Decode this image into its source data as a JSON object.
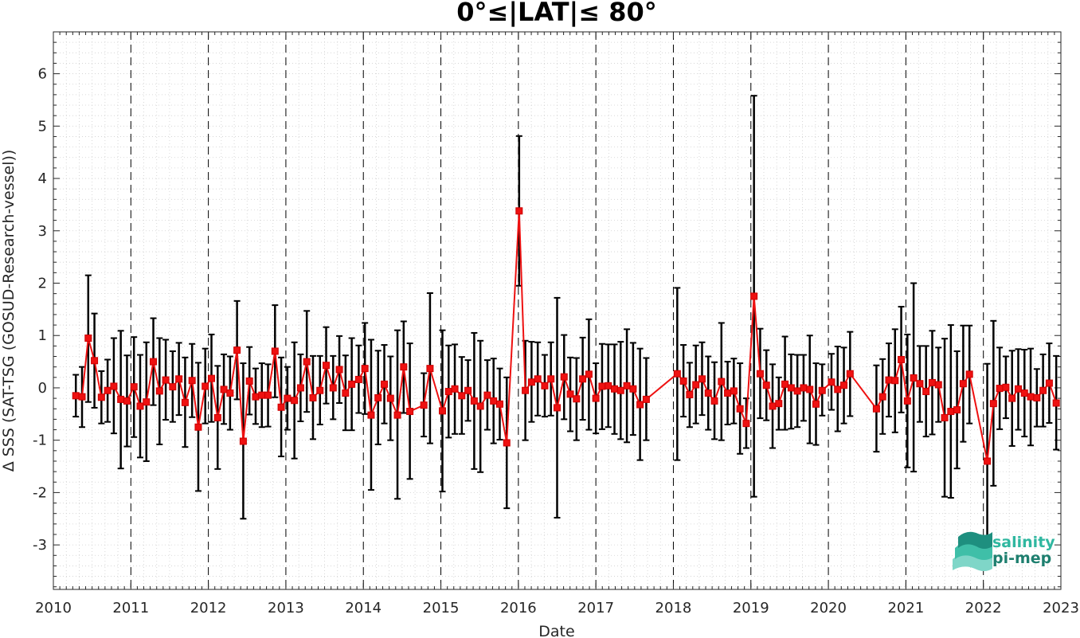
{
  "chart_data": {
    "type": "line",
    "title": "0°≤|LAT|≤ 80°",
    "xlabel": "Date",
    "ylabel": "Δ SSS (SAT-TSG (GOSUD-Research-vessel))",
    "xlim": [
      2010,
      2023
    ],
    "ylim": [
      -3.85,
      6.8
    ],
    "x_ticks": [
      "2010",
      "2011",
      "2012",
      "2013",
      "2014",
      "2015",
      "2016",
      "2017",
      "2018",
      "2019",
      "2020",
      "2021",
      "2022",
      "2023"
    ],
    "y_ticks": [
      "-3",
      "-2",
      "-1",
      "0",
      "1",
      "2",
      "3",
      "4",
      "5",
      "6"
    ],
    "grid": "minor dotted",
    "year_lines": "dashed",
    "series": [
      {
        "color": "#ee1111",
        "marker": "square",
        "error_bar_color": "#000000",
        "points": [
          {
            "x": 2010.29,
            "y": -0.15,
            "lo": -0.55,
            "hi": 0.25
          },
          {
            "x": 2010.37,
            "y": -0.17,
            "lo": -0.75,
            "hi": 0.4
          },
          {
            "x": 2010.45,
            "y": 0.95,
            "lo": -0.27,
            "hi": 2.15
          },
          {
            "x": 2010.53,
            "y": 0.52,
            "lo": -0.38,
            "hi": 1.42
          },
          {
            "x": 2010.62,
            "y": -0.18,
            "lo": -0.68,
            "hi": 0.32
          },
          {
            "x": 2010.7,
            "y": -0.05,
            "lo": -0.65,
            "hi": 0.54
          },
          {
            "x": 2010.78,
            "y": 0.03,
            "lo": -0.87,
            "hi": 0.95
          },
          {
            "x": 2010.87,
            "y": -0.22,
            "lo": -1.54,
            "hi": 1.09
          },
          {
            "x": 2010.95,
            "y": -0.25,
            "lo": -1.12,
            "hi": 0.62
          },
          {
            "x": 2011.04,
            "y": 0.02,
            "lo": -0.94,
            "hi": 0.97
          },
          {
            "x": 2011.12,
            "y": -0.35,
            "lo": -1.33,
            "hi": 0.63
          },
          {
            "x": 2011.2,
            "y": -0.27,
            "lo": -1.4,
            "hi": 0.87
          },
          {
            "x": 2011.29,
            "y": 0.5,
            "lo": -0.33,
            "hi": 1.33
          },
          {
            "x": 2011.37,
            "y": -0.06,
            "lo": -1.08,
            "hi": 0.95
          },
          {
            "x": 2011.45,
            "y": 0.15,
            "lo": -0.61,
            "hi": 0.92
          },
          {
            "x": 2011.54,
            "y": 0.02,
            "lo": -0.65,
            "hi": 0.7
          },
          {
            "x": 2011.62,
            "y": 0.17,
            "lo": -0.52,
            "hi": 0.86
          },
          {
            "x": 2011.7,
            "y": -0.28,
            "lo": -1.13,
            "hi": 0.58
          },
          {
            "x": 2011.79,
            "y": 0.14,
            "lo": -0.56,
            "hi": 0.84
          },
          {
            "x": 2011.87,
            "y": -0.75,
            "lo": -1.97,
            "hi": 0.48
          },
          {
            "x": 2011.96,
            "y": 0.03,
            "lo": -0.68,
            "hi": 0.75
          },
          {
            "x": 2012.04,
            "y": 0.18,
            "lo": -0.65,
            "hi": 1.02
          },
          {
            "x": 2012.12,
            "y": -0.57,
            "lo": -1.55,
            "hi": 0.42
          },
          {
            "x": 2012.2,
            "y": -0.03,
            "lo": -0.69,
            "hi": 0.64
          },
          {
            "x": 2012.28,
            "y": -0.1,
            "lo": -0.8,
            "hi": 0.6
          },
          {
            "x": 2012.37,
            "y": 0.72,
            "lo": -0.22,
            "hi": 1.66
          },
          {
            "x": 2012.45,
            "y": -1.02,
            "lo": -2.5,
            "hi": 0.47
          },
          {
            "x": 2012.53,
            "y": 0.13,
            "lo": -0.51,
            "hi": 0.78
          },
          {
            "x": 2012.61,
            "y": -0.17,
            "lo": -0.69,
            "hi": 0.37
          },
          {
            "x": 2012.69,
            "y": -0.14,
            "lo": -0.75,
            "hi": 0.47
          },
          {
            "x": 2012.77,
            "y": -0.14,
            "lo": -0.74,
            "hi": 0.45
          },
          {
            "x": 2012.86,
            "y": 0.7,
            "lo": -0.18,
            "hi": 1.58
          },
          {
            "x": 2012.94,
            "y": -0.37,
            "lo": -1.31,
            "hi": 0.58
          },
          {
            "x": 2013.02,
            "y": -0.2,
            "lo": -0.8,
            "hi": 0.4
          },
          {
            "x": 2013.11,
            "y": -0.24,
            "lo": -1.35,
            "hi": 0.87
          },
          {
            "x": 2013.19,
            "y": 0.0,
            "lo": -0.64,
            "hi": 0.64
          },
          {
            "x": 2013.27,
            "y": 0.5,
            "lo": -0.46,
            "hi": 1.47
          },
          {
            "x": 2013.35,
            "y": -0.19,
            "lo": -0.98,
            "hi": 0.61
          },
          {
            "x": 2013.44,
            "y": -0.05,
            "lo": -0.7,
            "hi": 0.61
          },
          {
            "x": 2013.52,
            "y": 0.43,
            "lo": -0.3,
            "hi": 1.16
          },
          {
            "x": 2013.61,
            "y": 0.0,
            "lo": -0.6,
            "hi": 0.61
          },
          {
            "x": 2013.69,
            "y": 0.35,
            "lo": -0.29,
            "hi": 0.99
          },
          {
            "x": 2013.77,
            "y": -0.1,
            "lo": -0.81,
            "hi": 0.62
          },
          {
            "x": 2013.85,
            "y": 0.07,
            "lo": -0.81,
            "hi": 0.95
          },
          {
            "x": 2013.94,
            "y": 0.16,
            "lo": -0.48,
            "hi": 0.81
          },
          {
            "x": 2014.02,
            "y": 0.37,
            "lo": -0.5,
            "hi": 1.24
          },
          {
            "x": 2014.1,
            "y": -0.52,
            "lo": -1.95,
            "hi": 0.92
          },
          {
            "x": 2014.19,
            "y": -0.19,
            "lo": -1.08,
            "hi": 0.71
          },
          {
            "x": 2014.27,
            "y": 0.07,
            "lo": -0.68,
            "hi": 0.82
          },
          {
            "x": 2014.35,
            "y": -0.2,
            "lo": -1.0,
            "hi": 0.6
          },
          {
            "x": 2014.44,
            "y": -0.52,
            "lo": -2.12,
            "hi": 1.1
          },
          {
            "x": 2014.52,
            "y": 0.4,
            "lo": -0.48,
            "hi": 1.27
          },
          {
            "x": 2014.6,
            "y": -0.45,
            "lo": -1.74,
            "hi": 0.85
          },
          {
            "x": 2014.78,
            "y": -0.33,
            "lo": -0.93,
            "hi": 0.28
          },
          {
            "x": 2014.86,
            "y": 0.37,
            "lo": -1.06,
            "hi": 1.81
          },
          {
            "x": 2015.02,
            "y": -0.44,
            "lo": -1.98,
            "hi": 1.1
          },
          {
            "x": 2015.1,
            "y": -0.07,
            "lo": -0.95,
            "hi": 0.81
          },
          {
            "x": 2015.18,
            "y": -0.02,
            "lo": -0.88,
            "hi": 0.83
          },
          {
            "x": 2015.27,
            "y": -0.15,
            "lo": -0.88,
            "hi": 0.59
          },
          {
            "x": 2015.35,
            "y": -0.05,
            "lo": -0.63,
            "hi": 0.53
          },
          {
            "x": 2015.43,
            "y": -0.25,
            "lo": -1.55,
            "hi": 1.05
          },
          {
            "x": 2015.51,
            "y": -0.35,
            "lo": -1.61,
            "hi": 0.9
          },
          {
            "x": 2015.6,
            "y": -0.14,
            "lo": -0.8,
            "hi": 0.53
          },
          {
            "x": 2015.68,
            "y": -0.25,
            "lo": -1.06,
            "hi": 0.56
          },
          {
            "x": 2015.76,
            "y": -0.31,
            "lo": -0.99,
            "hi": 0.37
          },
          {
            "x": 2015.85,
            "y": -1.05,
            "lo": -2.3,
            "hi": 0.2
          },
          {
            "x": 2016.01,
            "y": 3.38,
            "lo": 1.95,
            "hi": 4.81
          },
          {
            "x": 2016.09,
            "y": -0.05,
            "lo": -1.0,
            "hi": 0.9
          },
          {
            "x": 2016.17,
            "y": 0.11,
            "lo": -0.65,
            "hi": 0.88
          },
          {
            "x": 2016.25,
            "y": 0.17,
            "lo": -0.53,
            "hi": 0.87
          },
          {
            "x": 2016.34,
            "y": 0.04,
            "lo": -0.55,
            "hi": 0.63
          },
          {
            "x": 2016.42,
            "y": 0.17,
            "lo": -0.53,
            "hi": 0.87
          },
          {
            "x": 2016.5,
            "y": -0.38,
            "lo": -2.48,
            "hi": 1.72
          },
          {
            "x": 2016.59,
            "y": 0.21,
            "lo": -0.6,
            "hi": 1.01
          },
          {
            "x": 2016.67,
            "y": -0.12,
            "lo": -0.83,
            "hi": 0.58
          },
          {
            "x": 2016.75,
            "y": -0.21,
            "lo": -1.0,
            "hi": 0.57
          },
          {
            "x": 2016.83,
            "y": 0.17,
            "lo": -0.61,
            "hi": 0.96
          },
          {
            "x": 2016.91,
            "y": 0.26,
            "lo": -0.8,
            "hi": 1.31
          },
          {
            "x": 2017.0,
            "y": -0.2,
            "lo": -0.87,
            "hi": 0.47
          },
          {
            "x": 2017.08,
            "y": 0.03,
            "lo": -0.79,
            "hi": 0.84
          },
          {
            "x": 2017.16,
            "y": 0.04,
            "lo": -0.75,
            "hi": 0.83
          },
          {
            "x": 2017.24,
            "y": -0.02,
            "lo": -0.88,
            "hi": 0.83
          },
          {
            "x": 2017.32,
            "y": -0.05,
            "lo": -0.98,
            "hi": 0.88
          },
          {
            "x": 2017.4,
            "y": 0.04,
            "lo": -1.04,
            "hi": 1.12
          },
          {
            "x": 2017.48,
            "y": -0.02,
            "lo": -0.9,
            "hi": 0.86
          },
          {
            "x": 2017.57,
            "y": -0.32,
            "lo": -1.38,
            "hi": 0.75
          },
          {
            "x": 2017.65,
            "y": -0.22,
            "lo": -1.0,
            "hi": 0.57
          },
          {
            "x": 2018.05,
            "y": 0.27,
            "lo": -1.38,
            "hi": 1.91
          },
          {
            "x": 2018.13,
            "y": 0.13,
            "lo": -0.55,
            "hi": 0.82
          },
          {
            "x": 2018.21,
            "y": -0.13,
            "lo": -0.75,
            "hi": 0.48
          },
          {
            "x": 2018.29,
            "y": 0.06,
            "lo": -0.68,
            "hi": 0.81
          },
          {
            "x": 2018.37,
            "y": 0.17,
            "lo": -0.52,
            "hi": 0.87
          },
          {
            "x": 2018.45,
            "y": -0.1,
            "lo": -0.8,
            "hi": 0.6
          },
          {
            "x": 2018.53,
            "y": -0.25,
            "lo": -0.98,
            "hi": 0.49
          },
          {
            "x": 2018.62,
            "y": 0.12,
            "lo": -1.0,
            "hi": 1.24
          },
          {
            "x": 2018.7,
            "y": -0.1,
            "lo": -0.7,
            "hi": 0.5
          },
          {
            "x": 2018.78,
            "y": -0.06,
            "lo": -0.68,
            "hi": 0.56
          },
          {
            "x": 2018.86,
            "y": -0.4,
            "lo": -1.26,
            "hi": 0.47
          },
          {
            "x": 2018.94,
            "y": -0.68,
            "lo": -1.15,
            "hi": -0.2
          },
          {
            "x": 2019.04,
            "y": 1.75,
            "lo": -2.08,
            "hi": 5.58
          },
          {
            "x": 2019.12,
            "y": 0.27,
            "lo": -0.58,
            "hi": 1.13
          },
          {
            "x": 2019.2,
            "y": 0.05,
            "lo": -0.62,
            "hi": 0.72
          },
          {
            "x": 2019.28,
            "y": -0.35,
            "lo": -1.15,
            "hi": 0.45
          },
          {
            "x": 2019.36,
            "y": -0.3,
            "lo": -0.8,
            "hi": 0.2
          },
          {
            "x": 2019.44,
            "y": 0.07,
            "lo": -0.8,
            "hi": 0.98
          },
          {
            "x": 2019.52,
            "y": 0.0,
            "lo": -0.78,
            "hi": 0.64
          },
          {
            "x": 2019.6,
            "y": -0.06,
            "lo": -0.75,
            "hi": 0.63
          },
          {
            "x": 2019.68,
            "y": 0.0,
            "lo": -0.63,
            "hi": 0.63
          },
          {
            "x": 2019.76,
            "y": -0.03,
            "lo": -1.06,
            "hi": 1.0
          },
          {
            "x": 2019.84,
            "y": -0.31,
            "lo": -1.09,
            "hi": 0.47
          },
          {
            "x": 2019.92,
            "y": -0.05,
            "lo": -0.53,
            "hi": 0.45
          },
          {
            "x": 2020.04,
            "y": 0.11,
            "lo": -0.42,
            "hi": 0.65
          },
          {
            "x": 2020.12,
            "y": -0.03,
            "lo": -0.83,
            "hi": 0.79
          },
          {
            "x": 2020.2,
            "y": 0.05,
            "lo": -0.68,
            "hi": 0.77
          },
          {
            "x": 2020.28,
            "y": 0.27,
            "lo": -0.54,
            "hi": 1.07
          },
          {
            "x": 2020.62,
            "y": -0.4,
            "lo": -1.22,
            "hi": 0.43
          },
          {
            "x": 2020.7,
            "y": -0.17,
            "lo": -0.88,
            "hi": 0.55
          },
          {
            "x": 2020.78,
            "y": 0.15,
            "lo": -0.55,
            "hi": 0.85
          },
          {
            "x": 2020.86,
            "y": 0.14,
            "lo": -0.85,
            "hi": 1.12
          },
          {
            "x": 2020.94,
            "y": 0.54,
            "lo": -0.47,
            "hi": 1.55
          },
          {
            "x": 2021.02,
            "y": -0.25,
            "lo": -1.52,
            "hi": 1.02
          },
          {
            "x": 2021.1,
            "y": 0.19,
            "lo": -1.6,
            "hi": 2.0
          },
          {
            "x": 2021.18,
            "y": 0.08,
            "lo": -0.65,
            "hi": 0.8
          },
          {
            "x": 2021.26,
            "y": -0.07,
            "lo": -0.93,
            "hi": 0.8
          },
          {
            "x": 2021.34,
            "y": 0.1,
            "lo": -0.89,
            "hi": 1.09
          },
          {
            "x": 2021.42,
            "y": 0.06,
            "lo": -0.65,
            "hi": 0.77
          },
          {
            "x": 2021.5,
            "y": -0.57,
            "lo": -2.08,
            "hi": 0.94
          },
          {
            "x": 2021.58,
            "y": -0.45,
            "lo": -2.1,
            "hi": 1.2
          },
          {
            "x": 2021.66,
            "y": -0.42,
            "lo": -1.54,
            "hi": 0.7
          },
          {
            "x": 2021.74,
            "y": 0.08,
            "lo": -1.03,
            "hi": 1.19
          },
          {
            "x": 2021.82,
            "y": 0.26,
            "lo": -0.68,
            "hi": 1.19
          },
          {
            "x": 2022.05,
            "y": -1.4,
            "lo": -3.27,
            "hi": 0.46
          },
          {
            "x": 2022.13,
            "y": -0.3,
            "lo": -1.87,
            "hi": 1.28
          },
          {
            "x": 2022.21,
            "y": -0.01,
            "lo": -0.79,
            "hi": 0.77
          },
          {
            "x": 2022.29,
            "y": 0.01,
            "lo": -0.58,
            "hi": 0.6
          },
          {
            "x": 2022.37,
            "y": -0.2,
            "lo": -1.11,
            "hi": 0.71
          },
          {
            "x": 2022.45,
            "y": -0.02,
            "lo": -0.8,
            "hi": 0.74
          },
          {
            "x": 2022.53,
            "y": -0.1,
            "lo": -0.93,
            "hi": 0.73
          },
          {
            "x": 2022.61,
            "y": -0.17,
            "lo": -1.1,
            "hi": 0.75
          },
          {
            "x": 2022.69,
            "y": -0.19,
            "lo": -0.74,
            "hi": 0.36
          },
          {
            "x": 2022.77,
            "y": -0.05,
            "lo": -0.74,
            "hi": 0.64
          },
          {
            "x": 2022.85,
            "y": 0.09,
            "lo": -0.67,
            "hi": 0.85
          },
          {
            "x": 2022.94,
            "y": -0.29,
            "lo": -1.18,
            "hi": 0.61
          }
        ]
      }
    ]
  },
  "logo": {
    "line1": "salinity",
    "line2": "pi-mep"
  }
}
